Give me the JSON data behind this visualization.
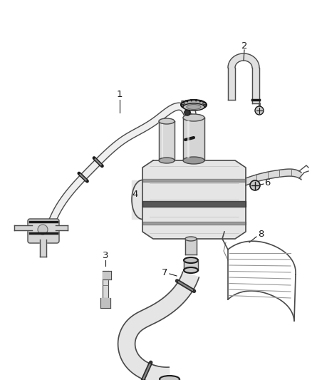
{
  "background_color": "#ffffff",
  "line_color": "#4a4a4a",
  "dark_line": "#1a1a1a",
  "mid_line": "#666666",
  "light_line": "#999999",
  "label_color": "#111111",
  "label_fontsize": 9.5,
  "fig_width": 4.38,
  "fig_height": 5.33,
  "dpi": 100,
  "xlim": [
    0,
    438
  ],
  "ylim": [
    0,
    533
  ]
}
